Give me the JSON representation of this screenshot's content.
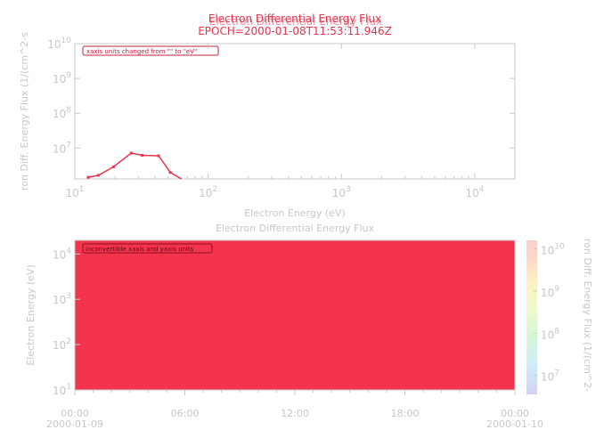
{
  "top_panel": {
    "title_lines": [
      "Electron Differential Energy Flux",
      "Electron Differential Energy Flux"
    ],
    "epoch": "EPOCH=2000-01-08T11:53:11.946Z",
    "annotation": "xaxis units changed from \"\" to \"eV\"",
    "ylabel": "ron Diff. Energy Flux (1/(cm^2-s",
    "xlabel": "Electron Energy (eV)"
  },
  "bottom_panel": {
    "title": "Electron Differential Energy Flux",
    "annotation": "inconvertible xaxis and yaxis units",
    "ylabel": "Electron Energy (eV)",
    "colorbar_label": "ron Diff. Energy Flux (1/(cm^2-"
  },
  "colors": {
    "accent": "#e8344e",
    "axis": "#c8c8c8",
    "text": "#c8c8c8",
    "fill": "#f4334d"
  },
  "chart_data": [
    {
      "type": "line",
      "title": "Electron Differential Energy Flux",
      "subtitle": "EPOCH=2000-01-08T11:53:11.946Z",
      "xlabel": "Electron Energy (eV)",
      "ylabel": "ron Diff. Energy Flux (1/(cm^2-s",
      "xscale": "log",
      "yscale": "log",
      "xlim": [
        10,
        20000
      ],
      "ylim": [
        1300000.0,
        10000000000.0
      ],
      "x_ticks": [
        {
          "v": 10,
          "base": "10",
          "exp": "1"
        },
        {
          "v": 100,
          "base": "10",
          "exp": "2"
        },
        {
          "v": 1000,
          "base": "10",
          "exp": "3"
        },
        {
          "v": 10000,
          "base": "10",
          "exp": "4"
        }
      ],
      "y_ticks": [
        {
          "v": 10000000.0,
          "base": "10",
          "exp": "7"
        },
        {
          "v": 100000000.0,
          "base": "10",
          "exp": "8"
        },
        {
          "v": 1000000000.0,
          "base": "10",
          "exp": "9"
        },
        {
          "v": 10000000000.0,
          "base": "10",
          "exp": "10"
        }
      ],
      "series": [
        {
          "x": [
            12.6,
            15.0,
            19.5,
            26.5,
            32.0,
            42.5,
            52.0,
            63.0
          ],
          "y": [
            1450000.0,
            1650000.0,
            2900000.0,
            7200000.0,
            6200000.0,
            6000000.0,
            2000000.0,
            1300000.0
          ]
        }
      ],
      "grid": false
    },
    {
      "type": "heatmap",
      "title": "Electron Differential Energy Flux",
      "ylabel": "Electron Energy (eV)",
      "yscale": "log",
      "ylim": [
        10,
        20000
      ],
      "x_ticks": [
        {
          "label": "00:00",
          "sub": "2000-01-09"
        },
        {
          "label": "06:00",
          "sub": ""
        },
        {
          "label": "12:00",
          "sub": ""
        },
        {
          "label": "18:00",
          "sub": ""
        },
        {
          "label": "00:00",
          "sub": "2000-01-10"
        }
      ],
      "y_ticks": [
        {
          "v": 10,
          "base": "10",
          "exp": "1"
        },
        {
          "v": 100,
          "base": "10",
          "exp": "2"
        },
        {
          "v": 1000,
          "base": "10",
          "exp": "3"
        },
        {
          "v": 10000,
          "base": "10",
          "exp": "4"
        }
      ],
      "fill_color": "#f4334d",
      "colorbar": {
        "scale": "log",
        "ticks": [
          {
            "v": 10000000.0,
            "base": "10",
            "exp": "7"
          },
          {
            "v": 100000000.0,
            "base": "10",
            "exp": "8"
          },
          {
            "v": 1000000000.0,
            "base": "10",
            "exp": "9"
          },
          {
            "v": 10000000000.0,
            "base": "10",
            "exp": "10"
          }
        ],
        "label": "ron Diff. Energy Flux (1/(cm^2-"
      }
    }
  ]
}
